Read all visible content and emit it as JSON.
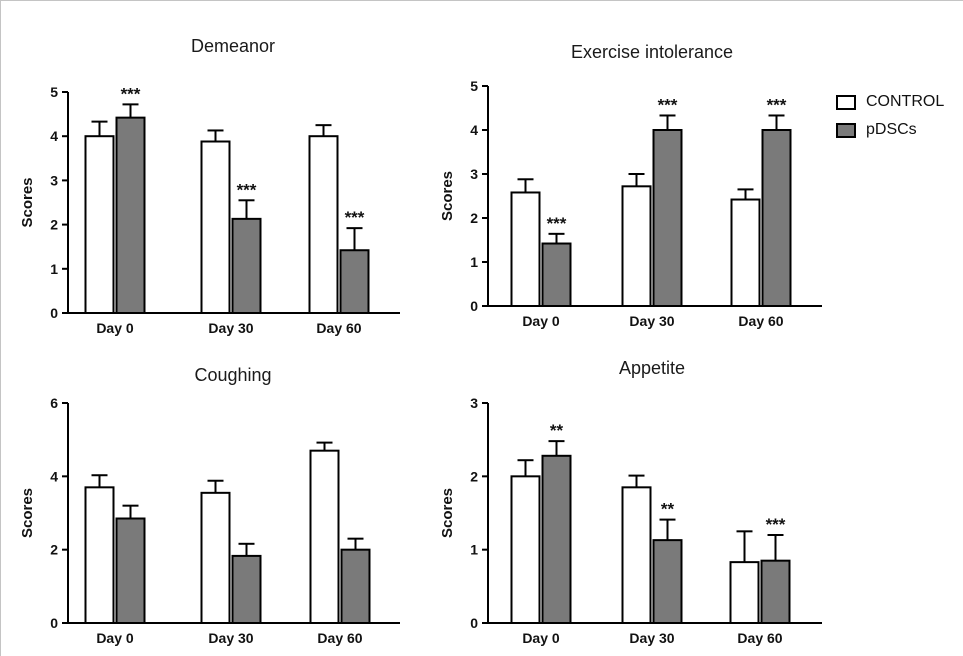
{
  "legend": {
    "control": "CONTROL",
    "pdscs": "pDSCs"
  },
  "colors": {
    "control": "#ffffff",
    "pdscs": "#7a7a7a",
    "ink": "#000000"
  },
  "chart_data": [
    {
      "type": "bar",
      "title": "Demeanor",
      "ylabel": "Scores",
      "ylim": [
        0,
        5
      ],
      "yticks": [
        0,
        1,
        2,
        3,
        4,
        5
      ],
      "categories": [
        "Day 0",
        "Day 30",
        "Day 60"
      ],
      "series": [
        {
          "name": "CONTROL",
          "values": [
            4.0,
            3.88,
            4.0
          ],
          "errors": [
            0.33,
            0.25,
            0.25
          ],
          "annotations": [
            "",
            "",
            ""
          ]
        },
        {
          "name": "pDSCs",
          "values": [
            4.42,
            2.13,
            1.42
          ],
          "errors": [
            0.3,
            0.42,
            0.5
          ],
          "annotations": [
            "***",
            "***",
            "***"
          ]
        }
      ]
    },
    {
      "type": "bar",
      "title": "Exercise intolerance",
      "ylabel": "Scores",
      "ylim": [
        0,
        5
      ],
      "yticks": [
        0,
        1,
        2,
        3,
        4,
        5
      ],
      "categories": [
        "Day 0",
        "Day 30",
        "Day 60"
      ],
      "series": [
        {
          "name": "CONTROL",
          "values": [
            2.58,
            2.72,
            2.42
          ],
          "errors": [
            0.3,
            0.28,
            0.23
          ],
          "annotations": [
            "",
            "",
            ""
          ]
        },
        {
          "name": "pDSCs",
          "values": [
            1.42,
            4.0,
            4.0
          ],
          "errors": [
            0.22,
            0.33,
            0.33
          ],
          "annotations": [
            "***",
            "***",
            "***"
          ]
        }
      ]
    },
    {
      "type": "bar",
      "title": "Coughing",
      "ylabel": "Scores",
      "ylim": [
        0,
        6
      ],
      "yticks": [
        0,
        2,
        4,
        6
      ],
      "categories": [
        "Day 0",
        "Day 30",
        "Day 60"
      ],
      "series": [
        {
          "name": "CONTROL",
          "values": [
            3.7,
            3.55,
            4.7
          ],
          "errors": [
            0.33,
            0.33,
            0.22
          ],
          "annotations": [
            "",
            "",
            ""
          ]
        },
        {
          "name": "pDSCs",
          "values": [
            2.85,
            1.83,
            2.0
          ],
          "errors": [
            0.35,
            0.33,
            0.3
          ],
          "annotations": [
            "",
            "",
            ""
          ]
        }
      ]
    },
    {
      "type": "bar",
      "title": "Appetite",
      "ylabel": "Scores",
      "ylim": [
        0,
        3
      ],
      "yticks": [
        0,
        1,
        2,
        3
      ],
      "categories": [
        "Day 0",
        "Day 30",
        "Day 60"
      ],
      "series": [
        {
          "name": "CONTROL",
          "values": [
            2.0,
            1.85,
            0.83
          ],
          "errors": [
            0.22,
            0.16,
            0.42
          ],
          "annotations": [
            "",
            "",
            ""
          ]
        },
        {
          "name": "pDSCs",
          "values": [
            2.28,
            1.13,
            0.85
          ],
          "errors": [
            0.2,
            0.28,
            0.35
          ],
          "annotations": [
            "**",
            "**",
            "***"
          ]
        }
      ]
    }
  ]
}
